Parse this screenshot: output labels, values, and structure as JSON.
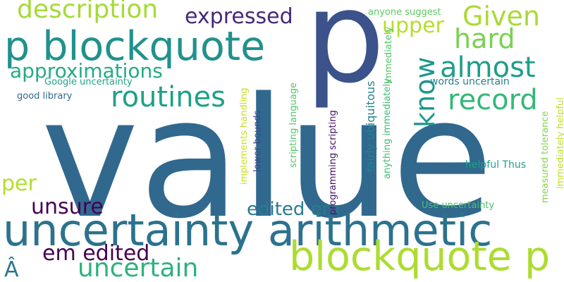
{
  "words": [
    {
      "text": "value",
      "color": "#31688e"
    },
    {
      "text": "p",
      "color": "#3b528b"
    },
    {
      "text": "uncertainty arithmetic",
      "color": "#2c728e"
    },
    {
      "text": "blockquote p",
      "color": "#addc30"
    },
    {
      "text": "p blockquote",
      "color": "#21918c"
    },
    {
      "text": "description",
      "color": "#a5db36"
    },
    {
      "text": "expressed",
      "color": "#482878"
    },
    {
      "text": "Given",
      "color": "#a8db34"
    },
    {
      "text": "hard",
      "color": "#7ad151"
    },
    {
      "text": "upper",
      "color": "#b5de2b"
    },
    {
      "text": "almost",
      "color": "#1f9e89"
    },
    {
      "text": "approximations",
      "color": "#25ab82"
    },
    {
      "text": "routines",
      "color": "#1fa088"
    },
    {
      "text": "record",
      "color": "#35b779"
    },
    {
      "text": "per",
      "color": "#b5de2b"
    },
    {
      "text": "know",
      "color": "#1f988b"
    },
    {
      "text": "unsure",
      "color": "#440154"
    },
    {
      "text": "edited em",
      "color": "#287c8e"
    },
    {
      "text": "em edited",
      "color": "#440154"
    },
    {
      "text": "uncertain",
      "color": "#2db27d"
    },
    {
      "text": "Â",
      "color": "#2a788e"
    },
    {
      "text": "anyone suggest",
      "color": "#5ec962"
    },
    {
      "text": "Google uncertainty",
      "color": "#20a386"
    },
    {
      "text": "good library",
      "color": "#31688e"
    },
    {
      "text": "words uncertain",
      "color": "#277f8e"
    },
    {
      "text": "helpful Thus",
      "color": "#1fa287"
    },
    {
      "text": "Use uncertainty",
      "color": "#4ac16d"
    },
    {
      "text": "fairly ubiquitous",
      "color": "#26828e"
    },
    {
      "text": "anything immediately",
      "color": "#3fbc73"
    },
    {
      "text": "immediately",
      "color": "#54c568"
    },
    {
      "text": "scripting language",
      "color": "#54c568"
    },
    {
      "text": "implements handling",
      "color": "#c8e020"
    },
    {
      "text": "lower bounds",
      "color": "#3e4989"
    },
    {
      "text": "programming scripting",
      "color": "#471164"
    },
    {
      "text": "measured tolerance",
      "color": "#7fd34e"
    },
    {
      "text": "immediately helpful",
      "color": "#bddf26"
    }
  ]
}
